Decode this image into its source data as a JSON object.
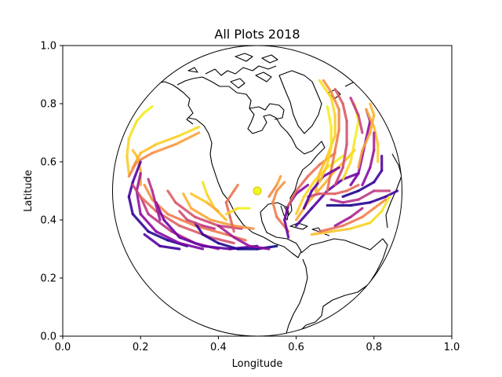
{
  "chart_data": {
    "type": "line",
    "title": "All Plots 2018",
    "xlabel": "Longitude",
    "ylabel": "Latitude",
    "xlim": [
      0,
      1
    ],
    "ylim": [
      0,
      1
    ],
    "xticks": [
      "0.0",
      "0.2",
      "0.4",
      "0.6",
      "0.8",
      "1.0"
    ],
    "yticks": [
      "0.0",
      "0.2",
      "0.4",
      "0.6",
      "0.8",
      "1.0"
    ],
    "grid": false,
    "projection": "orthographic globe",
    "globe": {
      "center": [
        0.5,
        0.5
      ],
      "radius_x": 0.372,
      "radius_y": 0.5
    },
    "colormap": "plasma",
    "center_marker": {
      "x": 0.5,
      "y": 0.5,
      "color": "#f0f921"
    },
    "series": [
      {
        "c": 0.95,
        "points": [
          [
            0.17,
            0.56
          ],
          [
            0.165,
            0.62
          ],
          [
            0.17,
            0.68
          ],
          [
            0.19,
            0.74
          ],
          [
            0.21,
            0.77
          ],
          [
            0.23,
            0.79
          ]
        ]
      },
      {
        "c": 0.9,
        "points": [
          [
            0.18,
            0.58
          ],
          [
            0.2,
            0.63
          ],
          [
            0.24,
            0.66
          ],
          [
            0.3,
            0.69
          ],
          [
            0.35,
            0.72
          ]
        ]
      },
      {
        "c": 0.75,
        "points": [
          [
            0.17,
            0.55
          ],
          [
            0.19,
            0.6
          ],
          [
            0.23,
            0.63
          ],
          [
            0.29,
            0.66
          ],
          [
            0.35,
            0.7
          ]
        ]
      },
      {
        "c": 0.85,
        "points": [
          [
            0.2,
            0.52
          ],
          [
            0.2,
            0.57
          ],
          [
            0.19,
            0.62
          ],
          [
            0.18,
            0.64
          ]
        ]
      },
      {
        "c": 0.1,
        "points": [
          [
            0.32,
            0.31
          ],
          [
            0.27,
            0.33
          ],
          [
            0.22,
            0.36
          ],
          [
            0.18,
            0.42
          ],
          [
            0.17,
            0.48
          ],
          [
            0.18,
            0.53
          ],
          [
            0.2,
            0.6
          ]
        ]
      },
      {
        "c": 0.3,
        "points": [
          [
            0.36,
            0.3
          ],
          [
            0.3,
            0.32
          ],
          [
            0.24,
            0.36
          ],
          [
            0.2,
            0.42
          ],
          [
            0.19,
            0.5
          ],
          [
            0.2,
            0.56
          ]
        ]
      },
      {
        "c": 0.45,
        "points": [
          [
            0.4,
            0.3
          ],
          [
            0.34,
            0.32
          ],
          [
            0.28,
            0.36
          ],
          [
            0.22,
            0.42
          ],
          [
            0.2,
            0.48
          ],
          [
            0.18,
            0.52
          ]
        ]
      },
      {
        "c": 0.6,
        "points": [
          [
            0.44,
            0.32
          ],
          [
            0.38,
            0.34
          ],
          [
            0.3,
            0.38
          ],
          [
            0.24,
            0.43
          ],
          [
            0.2,
            0.48
          ]
        ]
      },
      {
        "c": 0.7,
        "points": [
          [
            0.47,
            0.33
          ],
          [
            0.42,
            0.35
          ],
          [
            0.34,
            0.38
          ],
          [
            0.27,
            0.42
          ],
          [
            0.23,
            0.47
          ],
          [
            0.21,
            0.52
          ]
        ]
      },
      {
        "c": 0.2,
        "points": [
          [
            0.5,
            0.31
          ],
          [
            0.43,
            0.3
          ],
          [
            0.36,
            0.31
          ],
          [
            0.3,
            0.34
          ],
          [
            0.26,
            0.4
          ],
          [
            0.24,
            0.46
          ]
        ]
      },
      {
        "c": 0.55,
        "points": [
          [
            0.46,
            0.37
          ],
          [
            0.4,
            0.38
          ],
          [
            0.34,
            0.41
          ],
          [
            0.29,
            0.46
          ],
          [
            0.27,
            0.5
          ]
        ]
      },
      {
        "c": 0.8,
        "points": [
          [
            0.49,
            0.37
          ],
          [
            0.44,
            0.38
          ],
          [
            0.38,
            0.4
          ],
          [
            0.33,
            0.44
          ],
          [
            0.31,
            0.49
          ]
        ]
      },
      {
        "c": 0.92,
        "points": [
          [
            0.42,
            0.4
          ],
          [
            0.39,
            0.44
          ],
          [
            0.37,
            0.49
          ],
          [
            0.36,
            0.53
          ]
        ]
      },
      {
        "c": 0.65,
        "points": [
          [
            0.44,
            0.36
          ],
          [
            0.43,
            0.41
          ],
          [
            0.42,
            0.46
          ],
          [
            0.44,
            0.5
          ],
          [
            0.45,
            0.52
          ]
        ]
      },
      {
        "c": 0.05,
        "points": [
          [
            0.55,
            0.31
          ],
          [
            0.5,
            0.3
          ],
          [
            0.45,
            0.3
          ],
          [
            0.4,
            0.32
          ],
          [
            0.36,
            0.35
          ],
          [
            0.34,
            0.39
          ]
        ]
      },
      {
        "c": 0.35,
        "points": [
          [
            0.53,
            0.3
          ],
          [
            0.48,
            0.31
          ],
          [
            0.44,
            0.34
          ],
          [
            0.4,
            0.38
          ]
        ]
      },
      {
        "c": 0.88,
        "points": [
          [
            0.4,
            0.43
          ],
          [
            0.37,
            0.46
          ],
          [
            0.33,
            0.49
          ]
        ]
      },
      {
        "c": 0.5,
        "points": [
          [
            0.39,
            0.37
          ],
          [
            0.36,
            0.38
          ],
          [
            0.32,
            0.4
          ],
          [
            0.3,
            0.43
          ]
        ]
      },
      {
        "c": 0.98,
        "points": [
          [
            0.42,
            0.42
          ],
          [
            0.45,
            0.44
          ],
          [
            0.48,
            0.44
          ]
        ]
      },
      {
        "c": 0.4,
        "points": [
          [
            0.25,
            0.4
          ],
          [
            0.24,
            0.45
          ],
          [
            0.23,
            0.5
          ],
          [
            0.22,
            0.54
          ]
        ]
      },
      {
        "c": 0.15,
        "points": [
          [
            0.3,
            0.3
          ],
          [
            0.25,
            0.31
          ],
          [
            0.21,
            0.35
          ]
        ]
      },
      {
        "c": 0.72,
        "points": [
          [
            0.58,
            0.36
          ],
          [
            0.55,
            0.41
          ],
          [
            0.54,
            0.46
          ],
          [
            0.55,
            0.5
          ],
          [
            0.57,
            0.53
          ]
        ]
      },
      {
        "c": 0.25,
        "points": [
          [
            0.58,
            0.34
          ],
          [
            0.57,
            0.4
          ],
          [
            0.58,
            0.45
          ],
          [
            0.6,
            0.49
          ],
          [
            0.63,
            0.52
          ]
        ]
      },
      {
        "c": 0.95,
        "points": [
          [
            0.6,
            0.42
          ],
          [
            0.62,
            0.48
          ],
          [
            0.65,
            0.54
          ],
          [
            0.68,
            0.58
          ],
          [
            0.72,
            0.62
          ]
        ]
      },
      {
        "c": 0.85,
        "points": [
          [
            0.6,
            0.4
          ],
          [
            0.63,
            0.46
          ],
          [
            0.67,
            0.52
          ],
          [
            0.7,
            0.57
          ],
          [
            0.73,
            0.61
          ],
          [
            0.75,
            0.64
          ]
        ]
      },
      {
        "c": 0.65,
        "points": [
          [
            0.58,
            0.45
          ],
          [
            0.6,
            0.5
          ],
          [
            0.63,
            0.55
          ],
          [
            0.66,
            0.59
          ],
          [
            0.7,
            0.63
          ]
        ]
      },
      {
        "c": 0.18,
        "points": [
          [
            0.6,
            0.38
          ],
          [
            0.64,
            0.44
          ],
          [
            0.68,
            0.5
          ],
          [
            0.72,
            0.54
          ],
          [
            0.76,
            0.56
          ]
        ]
      },
      {
        "c": 0.78,
        "points": [
          [
            0.53,
            0.48
          ],
          [
            0.55,
            0.52
          ],
          [
            0.56,
            0.55
          ]
        ]
      },
      {
        "c": 0.9,
        "points": [
          [
            0.65,
            0.5
          ],
          [
            0.66,
            0.56
          ],
          [
            0.68,
            0.62
          ],
          [
            0.7,
            0.69
          ],
          [
            0.7,
            0.76
          ],
          [
            0.69,
            0.82
          ],
          [
            0.66,
            0.88
          ]
        ]
      },
      {
        "c": 0.7,
        "points": [
          [
            0.68,
            0.5
          ],
          [
            0.69,
            0.57
          ],
          [
            0.7,
            0.64
          ],
          [
            0.71,
            0.71
          ],
          [
            0.71,
            0.78
          ],
          [
            0.69,
            0.84
          ],
          [
            0.67,
            0.88
          ]
        ]
      },
      {
        "c": 0.55,
        "points": [
          [
            0.7,
            0.52
          ],
          [
            0.72,
            0.58
          ],
          [
            0.73,
            0.66
          ],
          [
            0.73,
            0.74
          ],
          [
            0.72,
            0.8
          ],
          [
            0.7,
            0.85
          ]
        ]
      },
      {
        "c": 0.98,
        "points": [
          [
            0.72,
            0.54
          ],
          [
            0.74,
            0.6
          ],
          [
            0.75,
            0.67
          ],
          [
            0.76,
            0.74
          ],
          [
            0.75,
            0.8
          ]
        ]
      },
      {
        "c": 0.3,
        "points": [
          [
            0.74,
            0.52
          ],
          [
            0.76,
            0.56
          ],
          [
            0.77,
            0.62
          ],
          [
            0.78,
            0.68
          ],
          [
            0.79,
            0.74
          ],
          [
            0.78,
            0.78
          ]
        ]
      },
      {
        "c": 0.82,
        "points": [
          [
            0.76,
            0.58
          ],
          [
            0.77,
            0.64
          ],
          [
            0.79,
            0.7
          ],
          [
            0.8,
            0.76
          ],
          [
            0.79,
            0.8
          ]
        ]
      },
      {
        "c": 0.1,
        "points": [
          [
            0.72,
            0.48
          ],
          [
            0.76,
            0.5
          ],
          [
            0.8,
            0.53
          ],
          [
            0.82,
            0.57
          ],
          [
            0.82,
            0.62
          ]
        ]
      },
      {
        "c": 0.45,
        "points": [
          [
            0.69,
            0.47
          ],
          [
            0.72,
            0.46
          ],
          [
            0.76,
            0.47
          ],
          [
            0.8,
            0.5
          ],
          [
            0.84,
            0.5
          ]
        ]
      },
      {
        "c": 0.08,
        "points": [
          [
            0.68,
            0.45
          ],
          [
            0.74,
            0.45
          ],
          [
            0.79,
            0.46
          ],
          [
            0.83,
            0.48
          ],
          [
            0.86,
            0.5
          ]
        ]
      },
      {
        "c": 0.6,
        "points": [
          [
            0.63,
            0.48
          ],
          [
            0.66,
            0.49
          ],
          [
            0.7,
            0.49
          ],
          [
            0.73,
            0.5
          ],
          [
            0.76,
            0.52
          ]
        ]
      },
      {
        "c": 0.92,
        "points": [
          [
            0.64,
            0.35
          ],
          [
            0.69,
            0.36
          ],
          [
            0.74,
            0.37
          ],
          [
            0.79,
            0.39
          ],
          [
            0.82,
            0.43
          ],
          [
            0.84,
            0.48
          ]
        ]
      },
      {
        "c": 0.7,
        "points": [
          [
            0.66,
            0.36
          ],
          [
            0.72,
            0.38
          ],
          [
            0.77,
            0.41
          ],
          [
            0.8,
            0.44
          ],
          [
            0.83,
            0.47
          ]
        ]
      },
      {
        "c": 0.4,
        "points": [
          [
            0.7,
            0.38
          ],
          [
            0.74,
            0.41
          ],
          [
            0.77,
            0.44
          ]
        ]
      },
      {
        "c": 0.2,
        "points": [
          [
            0.62,
            0.44
          ],
          [
            0.64,
            0.5
          ],
          [
            0.67,
            0.55
          ],
          [
            0.71,
            0.58
          ]
        ]
      },
      {
        "c": 0.88,
        "points": [
          [
            0.78,
            0.78
          ],
          [
            0.8,
            0.72
          ],
          [
            0.81,
            0.66
          ],
          [
            0.81,
            0.6
          ]
        ]
      },
      {
        "c": 0.5,
        "points": [
          [
            0.74,
            0.82
          ],
          [
            0.76,
            0.76
          ],
          [
            0.77,
            0.7
          ]
        ]
      },
      {
        "c": 0.95,
        "points": [
          [
            0.66,
            0.53
          ],
          [
            0.68,
            0.59
          ],
          [
            0.69,
            0.65
          ],
          [
            0.69,
            0.72
          ],
          [
            0.68,
            0.79
          ]
        ]
      },
      {
        "c": 0.35,
        "points": [
          [
            0.77,
            0.52
          ],
          [
            0.79,
            0.58
          ],
          [
            0.8,
            0.64
          ],
          [
            0.8,
            0.7
          ]
        ]
      }
    ]
  }
}
